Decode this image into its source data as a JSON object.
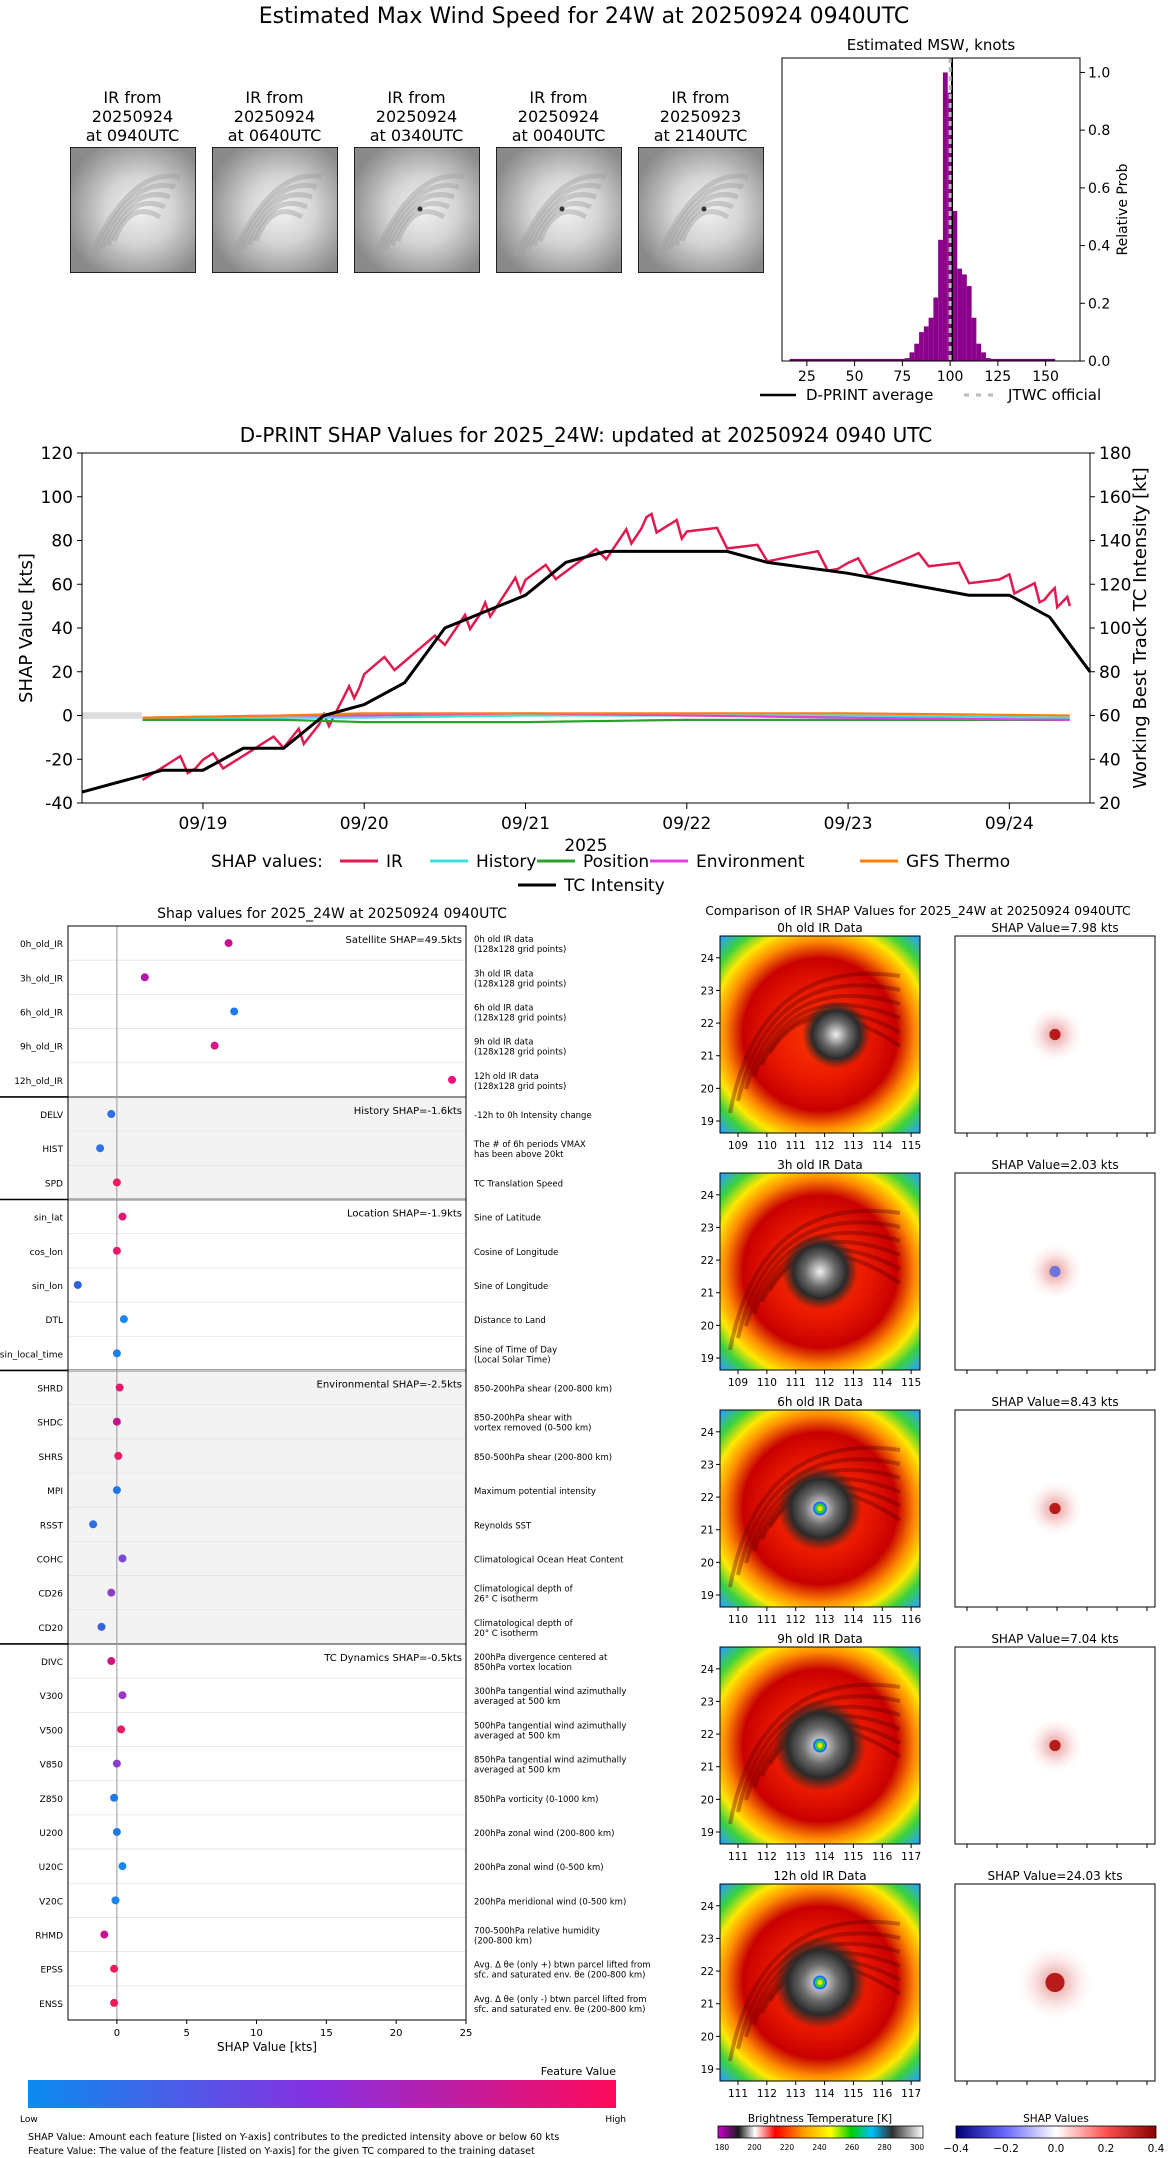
{
  "main_title": "Estimated Max Wind Speed for 24W at 20250924 0940UTC",
  "ir_thumbs": [
    {
      "l1": "IR from",
      "l2": "20250924",
      "l3": "at 0940UTC",
      "eye": 0
    },
    {
      "l1": "IR from",
      "l2": "20250924",
      "l3": "at 0640UTC",
      "eye": 0
    },
    {
      "l1": "IR from",
      "l2": "20250924",
      "l3": "at 0340UTC",
      "eye": 1
    },
    {
      "l1": "IR from",
      "l2": "20250924",
      "l3": "at 0040UTC",
      "eye": 1
    },
    {
      "l1": "IR from",
      "l2": "20250923",
      "l3": "at 2140UTC",
      "eye": 1
    }
  ],
  "msw_hist": {
    "title": "Estimated MSW, knots",
    "ylabel": "Relative Prob",
    "xticks": [
      "25",
      "50",
      "75",
      "100",
      "125",
      "150"
    ],
    "yticks": [
      "0.0",
      "0.2",
      "0.4",
      "0.6",
      "0.8",
      "1.0"
    ],
    "legend_avg": "D-PRINT average",
    "legend_jtwc": "JTWC official"
  },
  "shap_ts": {
    "title": "D-PRINT SHAP Values for 2025_24W: updated at 20250924 0940 UTC",
    "ylabel_left": "SHAP Value [kts]",
    "ylabel_right": "Working Best Track TC Intensity [kt]",
    "xlabel": "2025",
    "yticks_left": [
      "-40",
      "-20",
      "0",
      "20",
      "40",
      "60",
      "80",
      "100",
      "120"
    ],
    "yticks_right": [
      "20",
      "40",
      "60",
      "80",
      "100",
      "120",
      "140",
      "160",
      "180"
    ],
    "xticks": [
      "09/19",
      "09/20",
      "09/21",
      "09/22",
      "09/23",
      "09/24"
    ],
    "legend_prefix": "SHAP values:",
    "legend": [
      {
        "name": "IR",
        "color": "#e0194f"
      },
      {
        "name": "History",
        "color": "#40e0e0"
      },
      {
        "name": "Position",
        "color": "#2ca02c"
      },
      {
        "name": "Environment",
        "color": "#e040e0"
      },
      {
        "name": "GFS Thermo",
        "color": "#ff7f0e"
      }
    ],
    "legend_tc": "TC Intensity"
  },
  "feat": {
    "title": "Shap values for 2025_24W at 20250924 0940UTC",
    "xlabel": "SHAP Value [kts]",
    "xticks": [
      "0",
      "5",
      "10",
      "15",
      "20",
      "25"
    ],
    "groups": [
      {
        "label": "Satellite SHAP=49.5kts",
        "start": 0,
        "end": 5,
        "shaded": false
      },
      {
        "label": "History SHAP=-1.6kts",
        "start": 5,
        "end": 8,
        "shaded": true
      },
      {
        "label": "Location SHAP=-1.9kts",
        "start": 8,
        "end": 13,
        "shaded": false
      },
      {
        "label": "Environmental SHAP=-2.5kts",
        "start": 13,
        "end": 21,
        "shaded": true
      },
      {
        "label": "TC Dynamics SHAP=-0.5kts",
        "start": 21,
        "end": 32,
        "shaded": false
      }
    ],
    "rows": [
      {
        "name": "0h_old_IR",
        "d1": "0h old IR data",
        "d2": "(128x128 grid points)",
        "v": 8.0,
        "c": "#c8108e"
      },
      {
        "name": "3h_old_IR",
        "d1": "3h old IR data",
        "d2": "(128x128 grid points)",
        "v": 2.0,
        "c": "#b418a8"
      },
      {
        "name": "6h_old_IR",
        "d1": "6h old IR data",
        "d2": "(128x128 grid points)",
        "v": 8.4,
        "c": "#1f7ae8"
      },
      {
        "name": "9h_old_IR",
        "d1": "9h old IR data",
        "d2": "(128x128 grid points)",
        "v": 7.0,
        "c": "#d81486"
      },
      {
        "name": "12h_old_IR",
        "d1": "12h old IR data",
        "d2": "(128x128 grid points)",
        "v": 24.0,
        "c": "#f0107a"
      },
      {
        "name": "DELV",
        "d1": "-12h to 0h Intensity change",
        "d2": "",
        "v": -0.4,
        "c": "#2e6ee6"
      },
      {
        "name": "HIST",
        "d1": "The # of 6h periods VMAX",
        "d2": "has been above 20kt",
        "v": -1.2,
        "c": "#2a72e6"
      },
      {
        "name": "SPD",
        "d1": "TC Translation Speed",
        "d2": "",
        "v": 0.0,
        "c": "#f01c5a"
      },
      {
        "name": "sin_lat",
        "d1": "Sine of Latitude",
        "d2": "",
        "v": 0.4,
        "c": "#e01878"
      },
      {
        "name": "cos_lon",
        "d1": "Cosine of Longitude",
        "d2": "",
        "v": 0.0,
        "c": "#ea1a6a"
      },
      {
        "name": "sin_lon",
        "d1": "Sine of Longitude",
        "d2": "",
        "v": -2.8,
        "c": "#2a62e0"
      },
      {
        "name": "DTL",
        "d1": "Distance to Land",
        "d2": "",
        "v": 0.5,
        "c": "#1a86ee"
      },
      {
        "name": "sin_local_time",
        "d1": "Sine of Time of Day",
        "d2": "(Local Solar Time)",
        "v": 0.0,
        "c": "#1a7fee"
      },
      {
        "name": "SHRD",
        "d1": "850-200hPa shear (200-800 km)",
        "d2": "",
        "v": 0.2,
        "c": "#e41a6e"
      },
      {
        "name": "SHDC",
        "d1": "850-200hPa shear with",
        "d2": "vortex removed (0-500 km)",
        "v": 0.0,
        "c": "#c8148c"
      },
      {
        "name": "SHRS",
        "d1": "850-500hPa shear (200-800 km)",
        "d2": "",
        "v": 0.1,
        "c": "#ee1a62"
      },
      {
        "name": "MPI",
        "d1": "Maximum potential intensity",
        "d2": "",
        "v": 0.0,
        "c": "#1e7ae8"
      },
      {
        "name": "RSST",
        "d1": "Reynolds SST",
        "d2": "",
        "v": -1.7,
        "c": "#2a6ee6"
      },
      {
        "name": "COHC",
        "d1": "Climatological Ocean Heat Content",
        "d2": "",
        "v": 0.4,
        "c": "#7a4ad4"
      },
      {
        "name": "CD26",
        "d1": "Climatological depth of",
        "d2": "26° C isotherm",
        "v": -0.4,
        "c": "#8a3ec8"
      },
      {
        "name": "CD20",
        "d1": "Climatological depth of",
        "d2": "20° C isotherm",
        "v": -1.1,
        "c": "#3a62e0"
      },
      {
        "name": "DIVC",
        "d1": "200hPa divergence centered at",
        "d2": "850hPa vortex location",
        "v": -0.4,
        "c": "#d0147e"
      },
      {
        "name": "V300",
        "d1": "300hPa tangential wind azimuthally",
        "d2": "averaged at 500 km",
        "v": 0.4,
        "c": "#9a36c4"
      },
      {
        "name": "V500",
        "d1": "500hPa tangential wind azimuthally",
        "d2": "averaged at 500 km",
        "v": 0.3,
        "c": "#ec1a5e"
      },
      {
        "name": "V850",
        "d1": "850hPa tangential wind azimuthally",
        "d2": "averaged at 500 km",
        "v": 0.0,
        "c": "#8a3ec8"
      },
      {
        "name": "Z850",
        "d1": "850hPa vorticity (0-1000 km)",
        "d2": "",
        "v": -0.2,
        "c": "#1f7ae8"
      },
      {
        "name": "U200",
        "d1": "200hPa zonal wind (200-800 km)",
        "d2": "",
        "v": 0.0,
        "c": "#1f7ae8"
      },
      {
        "name": "U20C",
        "d1": "200hPa zonal wind (0-500 km)",
        "d2": "",
        "v": 0.4,
        "c": "#1a86ee"
      },
      {
        "name": "V20C",
        "d1": "200hPa meridional wind (0-500 km)",
        "d2": "",
        "v": -0.1,
        "c": "#1a86ee"
      },
      {
        "name": "RHMD",
        "d1": "700-500hPa relative humidity",
        "d2": "(200-800 km)",
        "v": -0.9,
        "c": "#c8148c"
      },
      {
        "name": "EPSS",
        "d1": "Avg. Δ θe (only +) btwn parcel lifted from",
        "d2": "sfc. and saturated env. θe (200-800 km)",
        "v": -0.2,
        "c": "#f01a5a"
      },
      {
        "name": "ENSS",
        "d1": "Avg. Δ θe (only -) btwn parcel lifted from",
        "d2": "sfc. and saturated env. θe (200-800 km)",
        "v": -0.2,
        "c": "#f01a5a"
      }
    ],
    "colorbar_title": "Feature Value",
    "colorbar_low": "Low",
    "colorbar_high": "High",
    "footnote1": "SHAP Value: Amount each feature [listed on Y-axis] contributes to the predicted intensity above or below 60 kts",
    "footnote2": "Feature Value: The value of the feature [listed on Y-axis] for the given TC compared to the training dataset"
  },
  "ir_compare": {
    "title": "Comparison of IR SHAP Values for 2025_24W at 20250924 0940UTC",
    "yticks": [
      "19",
      "20",
      "21",
      "22",
      "23",
      "24"
    ],
    "rows": [
      {
        "ir_title": "0h old IR Data",
        "shap_title": "SHAP Value=7.98 kts",
        "xticks": [
          "109",
          "110",
          "111",
          "112",
          "113",
          "114",
          "115"
        ],
        "eye": 0
      },
      {
        "ir_title": "3h old IR Data",
        "shap_title": "SHAP Value=2.03 kts",
        "xticks": [
          "109",
          "110",
          "111",
          "112",
          "113",
          "114",
          "115"
        ],
        "eye": 1
      },
      {
        "ir_title": "6h old IR Data",
        "shap_title": "SHAP Value=8.43 kts",
        "xticks": [
          "110",
          "111",
          "112",
          "113",
          "114",
          "115",
          "116"
        ],
        "eye": 2
      },
      {
        "ir_title": "9h old IR Data",
        "shap_title": "SHAP Value=7.04 kts",
        "xticks": [
          "111",
          "112",
          "113",
          "114",
          "115",
          "116",
          "117"
        ],
        "eye": 3
      },
      {
        "ir_title": "12h old IR Data",
        "shap_title": "SHAP Value=24.03 kts",
        "xticks": [
          "111",
          "112",
          "113",
          "114",
          "115",
          "116",
          "117"
        ],
        "eye": 3
      }
    ],
    "cbar_bt_title": "Brightness Temperature [K]",
    "cbar_bt_ticks": [
      "180",
      "200",
      "220",
      "240",
      "260",
      "280",
      "300"
    ],
    "cbar_shap_title": "SHAP Values",
    "cbar_shap_ticks": [
      "−0.4",
      "−0.2",
      "0.0",
      "0.2",
      "0.4"
    ]
  },
  "chart_data": [
    {
      "type": "bar",
      "title": "Estimated MSW, knots",
      "xlabel": "",
      "ylabel": "Relative Prob",
      "xlim": [
        12,
        168
      ],
      "ylim": [
        0,
        1.05
      ],
      "bin_width": 2.5,
      "bins_x": [
        77.5,
        80,
        82.5,
        85,
        87.5,
        90,
        92.5,
        95,
        97.5,
        100,
        102.5,
        105,
        107.5,
        110,
        112.5,
        115,
        117.5,
        120,
        122.5
      ],
      "values": [
        0.01,
        0.03,
        0.06,
        0.1,
        0.12,
        0.15,
        0.22,
        0.42,
        1.0,
        0.93,
        0.52,
        0.32,
        0.3,
        0.26,
        0.15,
        0.06,
        0.03,
        0.01,
        0.005
      ],
      "baseline_range": [
        16,
        155
      ],
      "average": 101,
      "jtwc": 100
    },
    {
      "type": "line",
      "title": "D-PRINT SHAP Values for 2025_24W: updated at 20250924 0940 UTC",
      "xlabel": "2025",
      "ylabel": "SHAP Value [kts]",
      "ylabel_right": "Working Best Track TC Intensity [kt]",
      "ylim": [
        -40,
        120
      ],
      "ylim_right": [
        20,
        180
      ],
      "x_range": [
        "09/18 06:00",
        "09/24 12:00"
      ],
      "series": [
        {
          "name": "IR",
          "x": [
            "09/18 15:00",
            "09/19 00:00",
            "09/19 12:00",
            "09/19 18:00",
            "09/20 00:00",
            "09/20 12:00",
            "09/20 18:00",
            "09/21 00:00",
            "09/21 12:00",
            "09/21 18:00",
            "09/22 00:00",
            "09/22 12:00",
            "09/23 00:00",
            "09/23 12:00",
            "09/24 00:00",
            "09/24 06:00",
            "09/24 09:00"
          ],
          "values": [
            -25,
            -22,
            -13,
            -4,
            18,
            35,
            48,
            62,
            75,
            88,
            85,
            75,
            68,
            70,
            60,
            55,
            50
          ]
        },
        {
          "name": "History",
          "x": [
            "09/18 15:00",
            "09/19 12:00",
            "09/20 00:00",
            "09/21 00:00",
            "09/22 00:00",
            "09/23 00:00",
            "09/24 09:00"
          ],
          "values": [
            -2,
            -1,
            -1,
            0,
            0,
            0,
            -1
          ]
        },
        {
          "name": "Position",
          "x": [
            "09/18 15:00",
            "09/19 12:00",
            "09/20 00:00",
            "09/21 00:00",
            "09/22 00:00",
            "09/23 00:00",
            "09/24 09:00"
          ],
          "values": [
            -2,
            -2,
            -3,
            -3,
            -2,
            -2,
            -2
          ]
        },
        {
          "name": "Environment",
          "x": [
            "09/18 15:00",
            "09/19 12:00",
            "09/20 00:00",
            "09/21 00:00",
            "09/22 00:00",
            "09/23 00:00",
            "09/24 09:00"
          ],
          "values": [
            -1,
            0,
            0,
            1,
            0,
            -1,
            -2
          ]
        },
        {
          "name": "GFS Thermo",
          "x": [
            "09/18 15:00",
            "09/19 12:00",
            "09/20 00:00",
            "09/21 00:00",
            "09/22 00:00",
            "09/23 00:00",
            "09/24 09:00"
          ],
          "values": [
            -1,
            0,
            1,
            1,
            1,
            1,
            0
          ]
        },
        {
          "name": "TC Intensity",
          "axis": "right",
          "x": [
            "09/18 06:00",
            "09/18 18:00",
            "09/19 00:00",
            "09/19 06:00",
            "09/19 12:00",
            "09/19 18:00",
            "09/20 00:00",
            "09/20 06:00",
            "09/20 12:00",
            "09/21 00:00",
            "09/21 06:00",
            "09/21 12:00",
            "09/21 18:00",
            "09/22 06:00",
            "09/22 12:00",
            "09/23 00:00",
            "09/23 18:00",
            "09/24 00:00",
            "09/24 06:00",
            "09/24 12:00"
          ],
          "values": [
            25,
            35,
            35,
            45,
            45,
            60,
            65,
            75,
            100,
            115,
            130,
            135,
            135,
            135,
            130,
            125,
            115,
            115,
            105,
            80
          ]
        }
      ]
    },
    {
      "type": "scatter",
      "title": "Shap values for 2025_24W at 20250924 0940UTC",
      "xlabel": "SHAP Value [kts]",
      "xlim": [
        -3.5,
        25
      ]
    }
  ]
}
